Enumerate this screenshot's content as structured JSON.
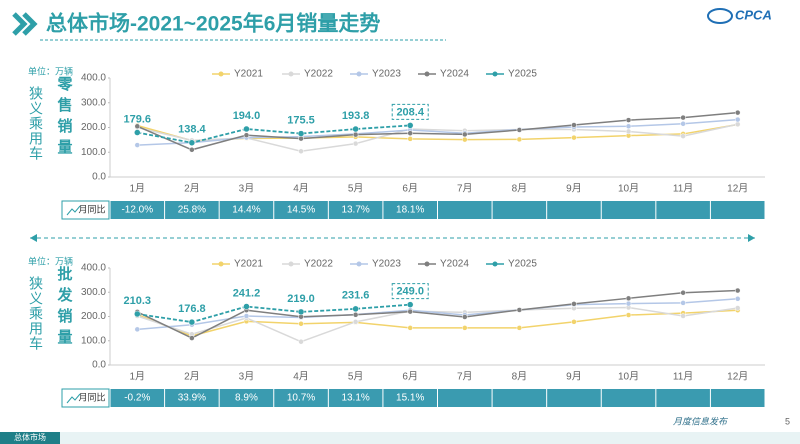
{
  "header": {
    "title": "总体市场-2021~2025年6月销量走势",
    "logo": "CPCA"
  },
  "chart_data": [
    {
      "type": "line",
      "unit": "单位：万辆",
      "group_label": "狭义乘用车",
      "title": "零售销量",
      "categories": [
        "1月",
        "2月",
        "3月",
        "4月",
        "5月",
        "6月",
        "7月",
        "8月",
        "9月",
        "10月",
        "11月",
        "12月"
      ],
      "ylim": [
        0,
        400
      ],
      "yticks": [
        {
          "value": 0,
          "label": "0.0"
        },
        {
          "value": 100,
          "label": "100.0"
        },
        {
          "value": 200,
          "label": "200.0"
        },
        {
          "value": 300,
          "label": "300.0"
        },
        {
          "value": 400,
          "label": "400.0"
        }
      ],
      "series": [
        {
          "name": "Y2021",
          "color": "#f2d36b",
          "values": [
            208,
            147,
            156,
            157,
            162,
            154,
            151,
            152,
            159,
            167,
            174,
            212
          ]
        },
        {
          "name": "Y2022",
          "color": "#d9d9d9",
          "values": [
            200,
            148,
            158,
            104,
            135,
            194,
            187,
            192,
            192,
            184,
            165,
            213
          ]
        },
        {
          "name": "Y2023",
          "color": "#b4c7e7",
          "values": [
            129,
            139,
            159,
            163,
            174,
            190,
            177,
            192,
            202,
            205,
            215,
            232
          ]
        },
        {
          "name": "Y2024",
          "color": "#7f7f7f",
          "values": [
            205,
            110,
            169,
            155,
            171,
            177,
            172,
            190,
            210,
            230,
            240,
            260
          ]
        },
        {
          "name": "Y2025",
          "color": "#2e9fa8",
          "values": [
            179.6,
            138.4,
            194.0,
            175.5,
            193.8,
            208.4,
            null,
            null,
            null,
            null,
            null,
            null
          ],
          "value_labels": [
            "179.6",
            "138.4",
            "194.0",
            "175.5",
            "193.8",
            "208.4",
            null,
            null,
            null,
            null,
            null,
            null
          ]
        }
      ],
      "yoy": {
        "label": "月同比",
        "labels": [
          "-12.0%",
          "25.8%",
          "14.4%",
          "14.5%",
          "13.7%",
          "18.1%"
        ]
      }
    },
    {
      "type": "line",
      "unit": "单位：万辆",
      "group_label": "狭义乘用车",
      "title": "批发销量",
      "categories": [
        "1月",
        "2月",
        "3月",
        "4月",
        "5月",
        "6月",
        "7月",
        "8月",
        "9月",
        "10月",
        "11月",
        "12月"
      ],
      "ylim": [
        0,
        400
      ],
      "yticks": [
        {
          "value": 0,
          "label": "0.0"
        },
        {
          "value": 100,
          "label": "100.0"
        },
        {
          "value": 200,
          "label": "200.0"
        },
        {
          "value": 300,
          "label": "300.0"
        },
        {
          "value": 400,
          "label": "400.0"
        }
      ],
      "series": [
        {
          "name": "Y2021",
          "color": "#f2d36b",
          "values": [
            208,
            120,
            180,
            170,
            176,
            153,
            153,
            153,
            178,
            206,
            214,
            226
          ]
        },
        {
          "name": "Y2022",
          "color": "#d9d9d9",
          "values": [
            202,
            127,
            194,
            96,
            178,
            222,
            217,
            227,
            234,
            237,
            202,
            235
          ]
        },
        {
          "name": "Y2023",
          "color": "#b4c7e7",
          "values": [
            147,
            166,
            202,
            196,
            208,
            226,
            206,
            227,
            249,
            253,
            256,
            273
          ]
        },
        {
          "name": "Y2024",
          "color": "#7f7f7f",
          "values": [
            219,
            111,
            226,
            199,
            207,
            220,
            198,
            227,
            252,
            275,
            298,
            307
          ]
        },
        {
          "name": "Y2025",
          "color": "#2e9fa8",
          "values": [
            210.3,
            176.8,
            241.2,
            219.0,
            231.6,
            249.0,
            null,
            null,
            null,
            null,
            null,
            null
          ],
          "value_labels": [
            "210.3",
            "176.8",
            "241.2",
            "219.0",
            "231.6",
            "249.0",
            null,
            null,
            null,
            null,
            null,
            null
          ]
        }
      ],
      "yoy": {
        "label": "月同比",
        "labels": [
          "-0.2%",
          "33.9%",
          "8.9%",
          "10.7%",
          "13.1%",
          "15.1%"
        ]
      }
    }
  ],
  "footer": {
    "tab": "总体市场",
    "note": "月度信息发布",
    "page": "5"
  }
}
